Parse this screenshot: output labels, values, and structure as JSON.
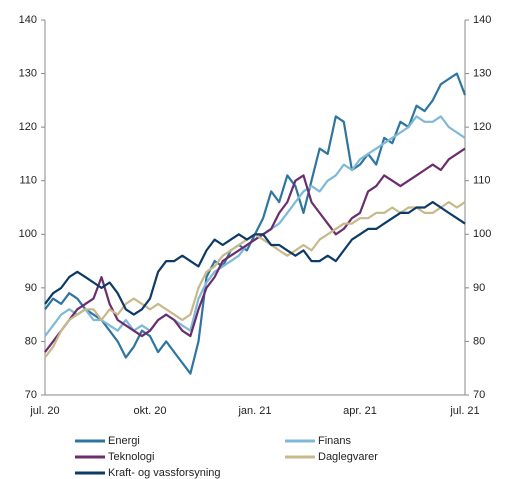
{
  "chart_data": {
    "type": "line",
    "categories": [
      "jul. 20",
      null,
      null,
      null,
      null,
      null,
      null,
      null,
      null,
      null,
      null,
      null,
      null,
      "okt. 20",
      null,
      null,
      null,
      null,
      null,
      null,
      null,
      null,
      null,
      null,
      null,
      null,
      "jan. 21",
      null,
      null,
      null,
      null,
      null,
      null,
      null,
      null,
      null,
      null,
      null,
      null,
      "apr. 21",
      null,
      null,
      null,
      null,
      null,
      null,
      null,
      null,
      null,
      null,
      null,
      null,
      "jul. 21"
    ],
    "ylim": [
      70,
      140
    ],
    "yticks": [
      70,
      80,
      90,
      100,
      110,
      120,
      130,
      140
    ],
    "y2lim": [
      70,
      140
    ],
    "y2ticks": [
      70,
      80,
      90,
      100,
      110,
      120,
      130,
      140
    ],
    "series": [
      {
        "name": "Energi",
        "color": "#2e75a0",
        "values": [
          86,
          88,
          87,
          89,
          88,
          86,
          85,
          84,
          82,
          80,
          77,
          79,
          82,
          81,
          78,
          80,
          78,
          76,
          74,
          80,
          92,
          95,
          94,
          97,
          98,
          97,
          100,
          103,
          108,
          106,
          111,
          109,
          104,
          110,
          116,
          115,
          122,
          121,
          112,
          113,
          115,
          113,
          118,
          117,
          121,
          120,
          124,
          123,
          125,
          128,
          129,
          130,
          126
        ]
      },
      {
        "name": "Finans",
        "color": "#7fb8d8",
        "values": [
          81,
          83,
          85,
          86,
          85,
          86,
          84,
          84,
          83,
          82,
          84,
          82,
          83,
          82,
          84,
          85,
          84,
          83,
          82,
          88,
          91,
          93,
          94,
          95,
          96,
          98,
          99,
          100,
          101,
          102,
          104,
          106,
          108,
          109,
          108,
          110,
          111,
          113,
          112,
          114,
          115,
          116,
          117,
          118,
          119,
          120,
          122,
          121,
          121,
          122,
          120,
          119,
          118
        ]
      },
      {
        "name": "Teknologi",
        "color": "#6b2d6e",
        "values": [
          78,
          80,
          82,
          84,
          86,
          87,
          88,
          92,
          87,
          84,
          83,
          82,
          81,
          82,
          84,
          85,
          84,
          82,
          81,
          86,
          90,
          92,
          95,
          96,
          97,
          98,
          99,
          100,
          101,
          104,
          106,
          110,
          111,
          106,
          104,
          102,
          100,
          101,
          103,
          104,
          108,
          109,
          111,
          110,
          109,
          110,
          111,
          112,
          113,
          112,
          114,
          115,
          116
        ]
      },
      {
        "name": "Daglegvarer",
        "color": "#c8b88a",
        "values": [
          77,
          79,
          82,
          84,
          85,
          86,
          86,
          84,
          86,
          85,
          87,
          88,
          87,
          86,
          87,
          86,
          85,
          84,
          85,
          90,
          93,
          94,
          96,
          97,
          98,
          99,
          100,
          99,
          98,
          97,
          96,
          97,
          98,
          97,
          99,
          100,
          101,
          102,
          102,
          103,
          103,
          104,
          104,
          105,
          104,
          105,
          105,
          104,
          104,
          105,
          106,
          105,
          106
        ]
      },
      {
        "name": "Kraft- og vassforsyning",
        "color": "#0d3b66",
        "values": [
          87,
          89,
          90,
          92,
          93,
          92,
          91,
          90,
          91,
          89,
          86,
          85,
          86,
          88,
          93,
          95,
          95,
          96,
          95,
          94,
          97,
          99,
          98,
          99,
          100,
          99,
          100,
          100,
          98,
          98,
          97,
          96,
          97,
          95,
          95,
          96,
          95,
          97,
          99,
          100,
          101,
          101,
          102,
          103,
          104,
          104,
          105,
          105,
          106,
          105,
          104,
          103,
          102
        ]
      }
    ]
  }
}
